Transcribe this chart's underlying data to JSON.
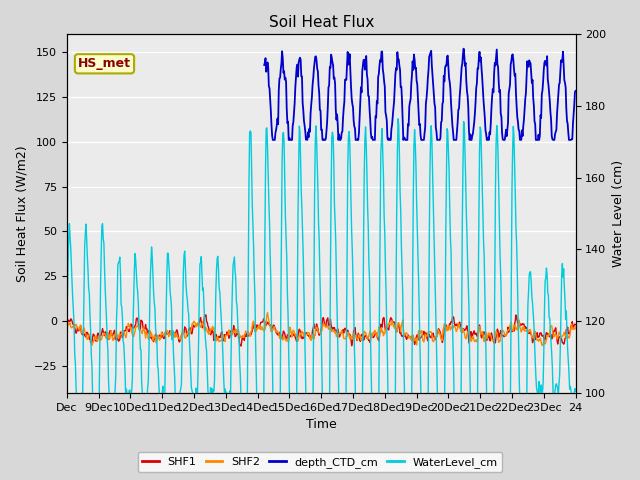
{
  "title": "Soil Heat Flux",
  "ylabel_left": "Soil Heat Flux (W/m2)",
  "ylabel_right": "Water Level (cm)",
  "xlabel": "Time",
  "ylim_left": [
    -40,
    160
  ],
  "ylim_right": [
    100,
    200
  ],
  "bg_color": "#d8d8d8",
  "plot_bg_color": "#ebebeb",
  "annotation_text": "HS_met",
  "annotation_bg": "#ffffcc",
  "annotation_border": "#aaaa00",
  "annotation_text_color": "#8b0000",
  "xtick_labels": [
    "Dec",
    "9Dec",
    "10Dec",
    "11Dec",
    "12Dec",
    "13Dec",
    "14Dec",
    "15Dec",
    "16Dec",
    "17Dec",
    "18Dec",
    "19Dec",
    "20Dec",
    "21Dec",
    "22Dec",
    "23Dec",
    "24"
  ],
  "shf_color": "#dd0000",
  "shf2_color": "#ff8800",
  "depth_color": "#0000cc",
  "water_color": "#00ccdd",
  "linewidth": 1.0
}
